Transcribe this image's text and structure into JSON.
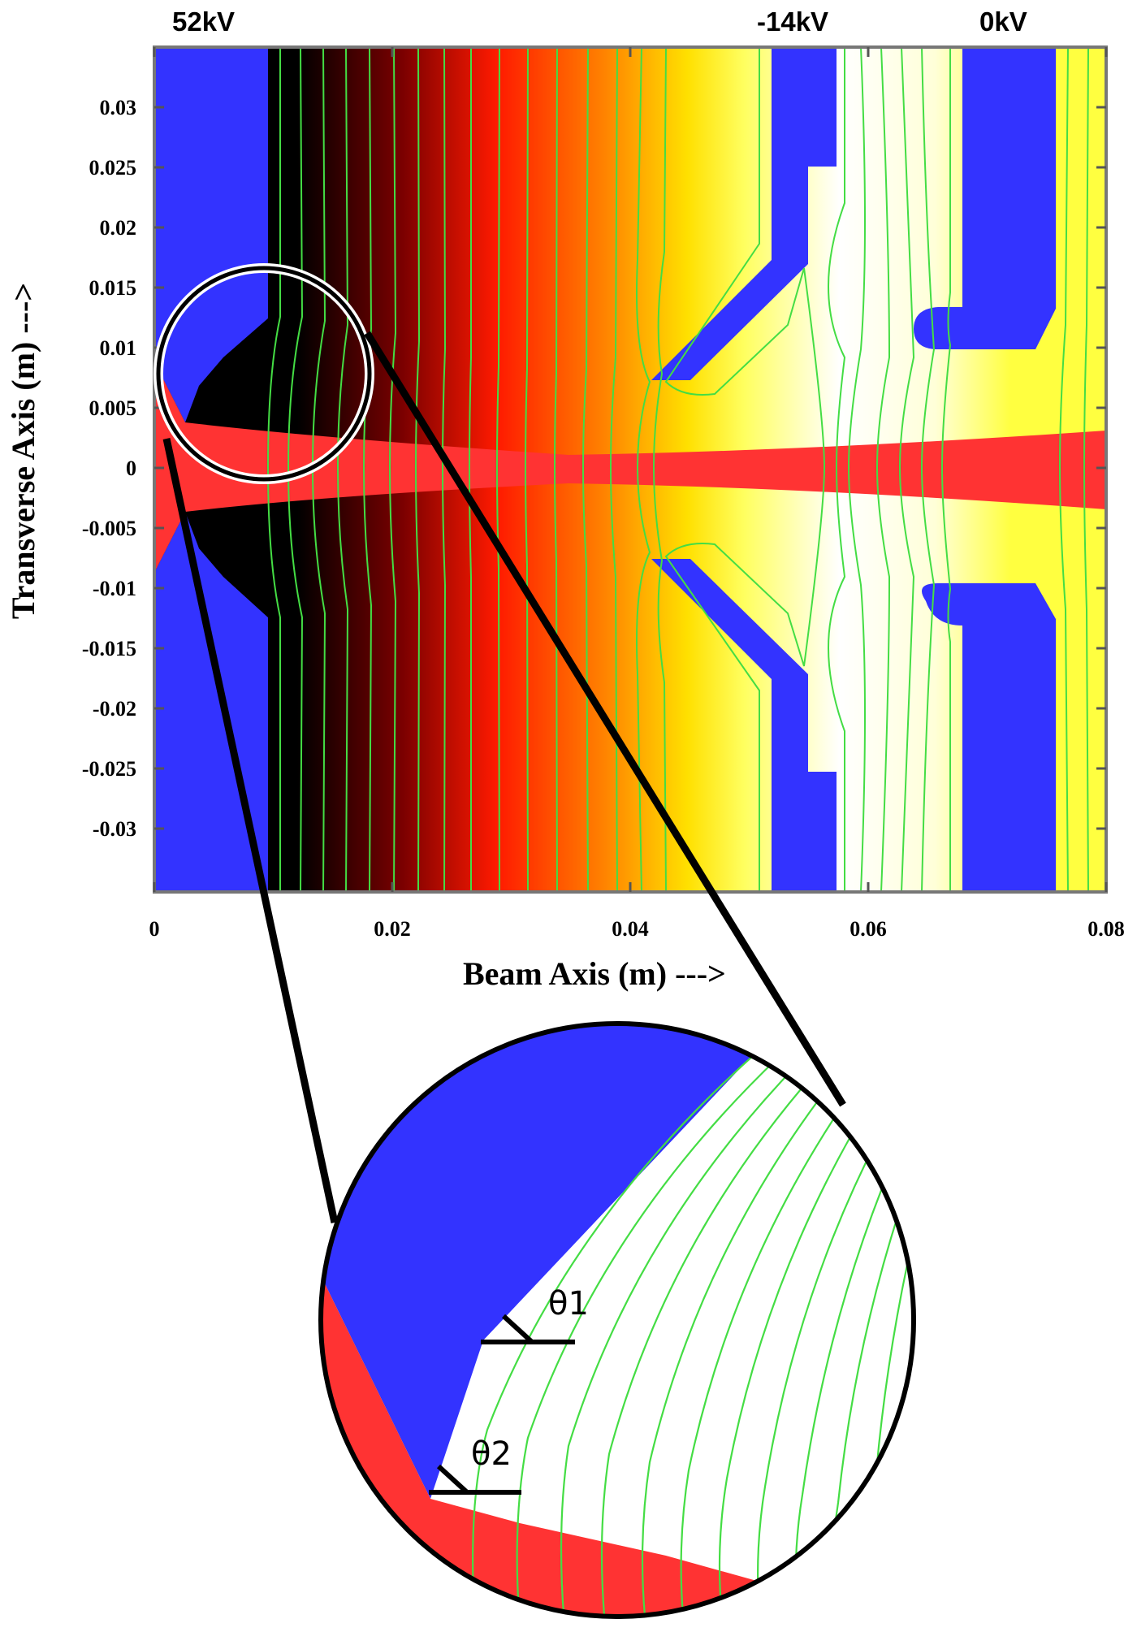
{
  "voltages": {
    "electrode1": "52kV",
    "electrode2": "-14kV",
    "electrode3": "0kV"
  },
  "axes": {
    "xlabel": "Beam Axis (m) --->",
    "ylabel": "Transverse Axis (m) --->",
    "xlim": [
      0,
      0.08
    ],
    "ylim": [
      -0.035,
      0.035
    ],
    "x_ticks": [
      "0",
      "0.02",
      "0.04",
      "0.06",
      "0.08"
    ],
    "y_ticks": [
      "0.03",
      "0.025",
      "0.02",
      "0.015",
      "0.01",
      "0.005",
      "0",
      "-0.005",
      "-0.01",
      "-0.015",
      "-0.02",
      "-0.025",
      "-0.03"
    ]
  },
  "inset": {
    "angle1": "θ1",
    "angle2": "θ2"
  },
  "colors": {
    "electrode": "#3333ff",
    "beam": "#ff3333",
    "equipotential": "#44dd44",
    "field_gradient": [
      "#000000",
      "#ff1a00",
      "#ffff00",
      "#ffffff",
      "#ffff40"
    ]
  }
}
